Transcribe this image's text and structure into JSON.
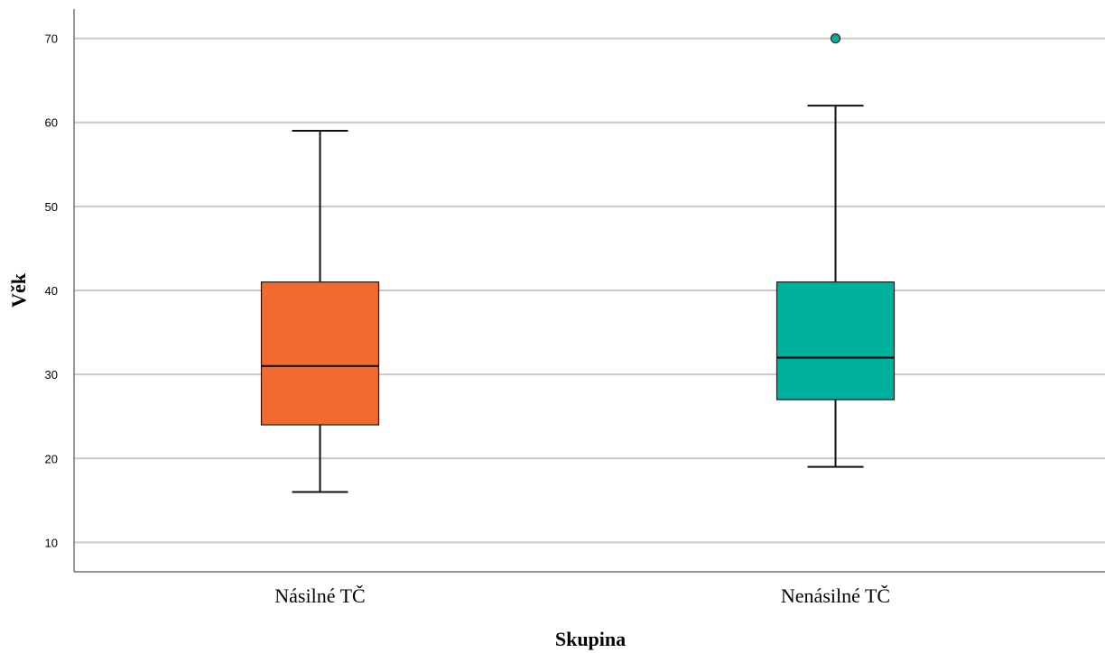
{
  "chart_data": {
    "type": "boxplot",
    "xlabel": "Skupina",
    "ylabel": "Věk",
    "ylim": [
      6.5,
      73.5
    ],
    "yticks": [
      10,
      20,
      30,
      40,
      50,
      60,
      70
    ],
    "grid": true,
    "categories": [
      "Násilné TČ",
      "Nenásilné TČ"
    ],
    "boxes": [
      {
        "category": "Násilné TČ",
        "whisker_low": 16,
        "q1": 24,
        "median": 31,
        "q3": 41,
        "whisker_high": 59,
        "outliers": [],
        "color": "#f26a2e"
      },
      {
        "category": "Nenásilné TČ",
        "whisker_low": 19,
        "q1": 27,
        "median": 32,
        "q3": 41,
        "whisker_high": 62,
        "outliers": [
          70
        ],
        "color": "#00b09e"
      }
    ]
  }
}
